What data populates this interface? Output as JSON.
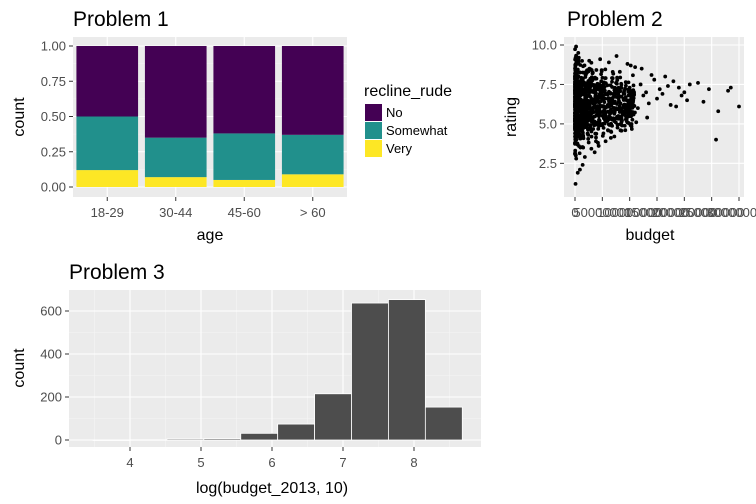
{
  "chart_data": [
    {
      "type": "bar",
      "stacked": true,
      "position": "fill",
      "title": "Problem 1",
      "xlabel": "age",
      "ylabel": "count",
      "categories": [
        "18-29",
        "30-44",
        "45-60",
        "> 60"
      ],
      "yticks": [
        "0.00",
        "0.25",
        "0.50",
        "0.75",
        "1.00"
      ],
      "ylim": [
        0,
        1
      ],
      "legend": {
        "title": "recline_rude",
        "position": "right"
      },
      "series": [
        {
          "name": "No",
          "color": "#440154",
          "values": [
            0.5,
            0.65,
            0.62,
            0.63
          ]
        },
        {
          "name": "Somewhat",
          "color": "#21908C",
          "values": [
            0.38,
            0.28,
            0.33,
            0.28
          ]
        },
        {
          "name": "Very",
          "color": "#FDE725",
          "values": [
            0.12,
            0.07,
            0.05,
            0.09
          ]
        }
      ]
    },
    {
      "type": "scatter",
      "title": "Problem 2",
      "xlabel": "budget",
      "ylabel": "rating",
      "xticks": [
        "0",
        "50000000",
        "100000000",
        "150000000",
        "200000000",
        "250000000",
        "300000000"
      ],
      "yticks": [
        "2.5",
        "5.0",
        "7.5",
        "10.0"
      ],
      "xlim": [
        -10000000,
        310000000
      ],
      "ylim": [
        0.8,
        10.3
      ],
      "point_color": "#000000",
      "points": [
        [
          1000000,
          1.2
        ],
        [
          2000000,
          9.9
        ],
        [
          3000000,
          5.0
        ],
        [
          500000,
          7.0
        ],
        [
          1500000,
          3.0
        ],
        [
          4000000,
          8.8
        ],
        [
          8000000,
          6.3
        ],
        [
          12000000,
          5.5
        ],
        [
          15000000,
          7.2
        ],
        [
          20000000,
          4.8
        ],
        [
          25000000,
          6.8
        ],
        [
          30000000,
          5.9
        ],
        [
          35000000,
          7.4
        ],
        [
          40000000,
          6.1
        ],
        [
          45000000,
          5.2
        ],
        [
          50000000,
          6.6
        ],
        [
          55000000,
          7.9
        ],
        [
          60000000,
          6.2
        ],
        [
          65000000,
          5.7
        ],
        [
          70000000,
          6.9
        ],
        [
          75000000,
          7.6
        ],
        [
          80000000,
          6.4
        ],
        [
          85000000,
          5.8
        ],
        [
          90000000,
          7.1
        ],
        [
          95000000,
          6.5
        ],
        [
          100000000,
          7.3
        ],
        [
          105000000,
          6.7
        ],
        [
          110000000,
          8.6
        ],
        [
          115000000,
          6.0
        ],
        [
          120000000,
          7.5
        ],
        [
          125000000,
          6.8
        ],
        [
          130000000,
          7.0
        ],
        [
          135000000,
          6.3
        ],
        [
          140000000,
          8.1
        ],
        [
          145000000,
          7.8
        ],
        [
          150000000,
          6.6
        ],
        [
          155000000,
          7.2
        ],
        [
          160000000,
          6.9
        ],
        [
          165000000,
          8.0
        ],
        [
          170000000,
          7.4
        ],
        [
          175000000,
          6.2
        ],
        [
          180000000,
          7.7
        ],
        [
          185000000,
          6.1
        ],
        [
          190000000,
          7.3
        ],
        [
          195000000,
          6.8
        ],
        [
          200000000,
          7.0
        ],
        [
          205000000,
          6.5
        ],
        [
          210000000,
          7.5
        ],
        [
          225000000,
          7.6
        ],
        [
          235000000,
          6.4
        ],
        [
          245000000,
          7.2
        ],
        [
          258000000,
          4.0
        ],
        [
          262000000,
          5.8
        ],
        [
          280000000,
          7.1
        ],
        [
          285000000,
          7.3
        ],
        [
          300000000,
          6.1
        ],
        [
          18000000,
          2.9
        ],
        [
          10000000,
          3.5
        ],
        [
          22000000,
          8.4
        ],
        [
          32000000,
          8.2
        ],
        [
          42000000,
          3.8
        ],
        [
          52000000,
          4.4
        ],
        [
          62000000,
          8.9
        ],
        [
          72000000,
          4.2
        ],
        [
          82000000,
          8.3
        ],
        [
          92000000,
          4.6
        ],
        [
          102000000,
          8.7
        ],
        [
          112000000,
          5.1
        ],
        [
          122000000,
          8.5
        ],
        [
          132000000,
          5.4
        ],
        [
          7000000,
          9.2
        ],
        [
          14000000,
          2.4
        ],
        [
          26000000,
          9.0
        ],
        [
          36000000,
          3.2
        ],
        [
          46000000,
          9.1
        ],
        [
          56000000,
          3.9
        ],
        [
          66000000,
          5.0
        ],
        [
          76000000,
          9.3
        ],
        [
          86000000,
          4.9
        ],
        [
          96000000,
          8.8
        ],
        [
          5000000,
          1.9
        ],
        [
          9000000,
          2.1
        ],
        [
          6000000,
          9.5
        ],
        [
          3000000,
          6.0
        ],
        [
          2500000,
          4.0
        ],
        [
          16000000,
          6.0
        ],
        [
          28000000,
          5.3
        ],
        [
          38000000,
          6.0
        ],
        [
          48000000,
          7.7
        ],
        [
          58000000,
          6.9
        ]
      ]
    },
    {
      "type": "bar",
      "subtype": "histogram",
      "title": "Problem 3",
      "xlabel": "log(budget_2013, 10)",
      "ylabel": "count",
      "xticks": [
        "4",
        "5",
        "6",
        "7",
        "8"
      ],
      "yticks": [
        "0",
        "200",
        "400",
        "600"
      ],
      "xlim": [
        3.3,
        8.9
      ],
      "ylim": [
        -30,
        690
      ],
      "bin_width": 0.52,
      "bar_color": "#4d4d4d",
      "bins": [
        {
          "x0": 3.48,
          "count": 0
        },
        {
          "x0": 4.0,
          "count": 1
        },
        {
          "x0": 4.52,
          "count": 5
        },
        {
          "x0": 5.04,
          "count": 6
        },
        {
          "x0": 5.56,
          "count": 31
        },
        {
          "x0": 6.08,
          "count": 74
        },
        {
          "x0": 6.6,
          "count": 215
        },
        {
          "x0": 7.12,
          "count": 637
        },
        {
          "x0": 7.64,
          "count": 653
        },
        {
          "x0": 8.16,
          "count": 153
        }
      ]
    }
  ]
}
